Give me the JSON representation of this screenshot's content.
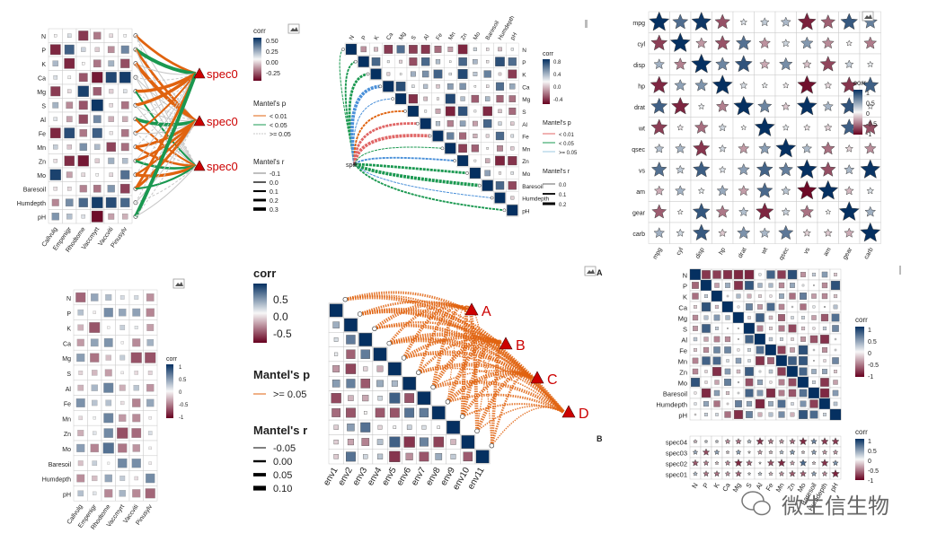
{
  "colors": {
    "pos": "#053061",
    "mid": "#f7f7f7",
    "neg": "#67001f",
    "orange": "#e0630f",
    "green": "#1a9850",
    "grey": "#c8c8c8",
    "marker": "#cc0000"
  },
  "icon": "image-icon",
  "watermark": "微生信生物",
  "panels": {
    "p1": {
      "rows": [
        "N",
        "P",
        "K",
        "Ca",
        "Mg",
        "S",
        "Al",
        "Fe",
        "Mn",
        "Zn",
        "Mo",
        "Baresoil",
        "Humdepth",
        "pH"
      ],
      "cols": [
        "Callvulg",
        "Empenigr",
        "Rhodtome",
        "Vaccmyrt",
        "Vaccviti",
        "Pinusylv"
      ],
      "spec_labels": [
        "spec0",
        "spec0",
        "spec0"
      ],
      "legend": {
        "title": "corr",
        "ticks": [
          "0.50",
          "0.25",
          "0.00",
          "-0.25"
        ],
        "p_title": "Mantel's p",
        "p_items": [
          "< 0.01",
          "< 0.05",
          ">= 0.05"
        ],
        "r_title": "Mantel's r",
        "r_items": [
          "-0.1",
          "0.0",
          "0.1",
          "0.2",
          "0.3"
        ]
      }
    },
    "p2": {
      "vars": [
        "N",
        "P",
        "K",
        "Ca",
        "Mg",
        "S",
        "Al",
        "Fe",
        "Mn",
        "Zn",
        "Mo",
        "Baresoil",
        "Humdepth",
        "pH"
      ],
      "spec_label": "spec",
      "legend": {
        "title": "corr",
        "ticks": [
          "0.8",
          "0.4",
          "0.0",
          "-0.4"
        ],
        "p_title": "Mantel's p",
        "p_items": [
          "< 0.01",
          "< 0.05",
          ">= 0.05"
        ],
        "r_title": "Mantel's r",
        "r_items": [
          "0.0",
          "0.1",
          "0.2"
        ]
      }
    },
    "p3": {
      "vars": [
        "mpg",
        "cyl",
        "disp",
        "hp",
        "drat",
        "wt",
        "qsec",
        "vs",
        "am",
        "gear",
        "carb"
      ],
      "legend": {
        "title": "corr",
        "ticks": [
          "1",
          "0.5",
          "0",
          "-0.5",
          "-1"
        ]
      }
    },
    "p4": {
      "rows": [
        "N",
        "P",
        "K",
        "Ca",
        "Mg",
        "S",
        "Al",
        "Fe",
        "Mn",
        "Zn",
        "Mo",
        "Baresoil",
        "Humdepth",
        "pH"
      ],
      "cols": [
        "Callvulg",
        "Empenigr",
        "Rhodtome",
        "Vaccmyrt",
        "Vaccviti",
        "Pinusylv"
      ],
      "legend": {
        "title": "corr",
        "ticks": [
          "1",
          "0.5",
          "0",
          "-0.5",
          "-1"
        ]
      }
    },
    "p5": {
      "envs": [
        "env1",
        "env2",
        "env3",
        "env4",
        "env5",
        "env6",
        "env7",
        "env8",
        "env9",
        "env10",
        "env11"
      ],
      "targets": [
        "A",
        "B",
        "C",
        "D"
      ],
      "legend": {
        "title": "corr",
        "ticks": [
          "0.5",
          "0.0",
          "-0.5"
        ],
        "p_title": "Mantel's p",
        "p_items": [
          ">= 0.05"
        ],
        "r_title": "Mantel's r",
        "r_items": [
          "-0.05",
          "0.00",
          "0.05",
          "0.10"
        ]
      },
      "panel_labels": [
        "A",
        "B"
      ]
    },
    "p6": {
      "vars": [
        "N",
        "P",
        "K",
        "Ca",
        "Mg",
        "S",
        "Al",
        "Fe",
        "Mn",
        "Zn",
        "Mo",
        "Baresoil",
        "Humdepth",
        "pH"
      ],
      "specs": [
        "spec04",
        "spec03",
        "spec02",
        "spec01"
      ],
      "legend1": {
        "title": "corr",
        "ticks": [
          "1",
          "0.5",
          "0",
          "-0.5",
          "-1"
        ]
      },
      "legend2": {
        "title": "corr",
        "ticks": [
          "1",
          "0.5",
          "0",
          "-0.5",
          "-1"
        ]
      }
    }
  }
}
